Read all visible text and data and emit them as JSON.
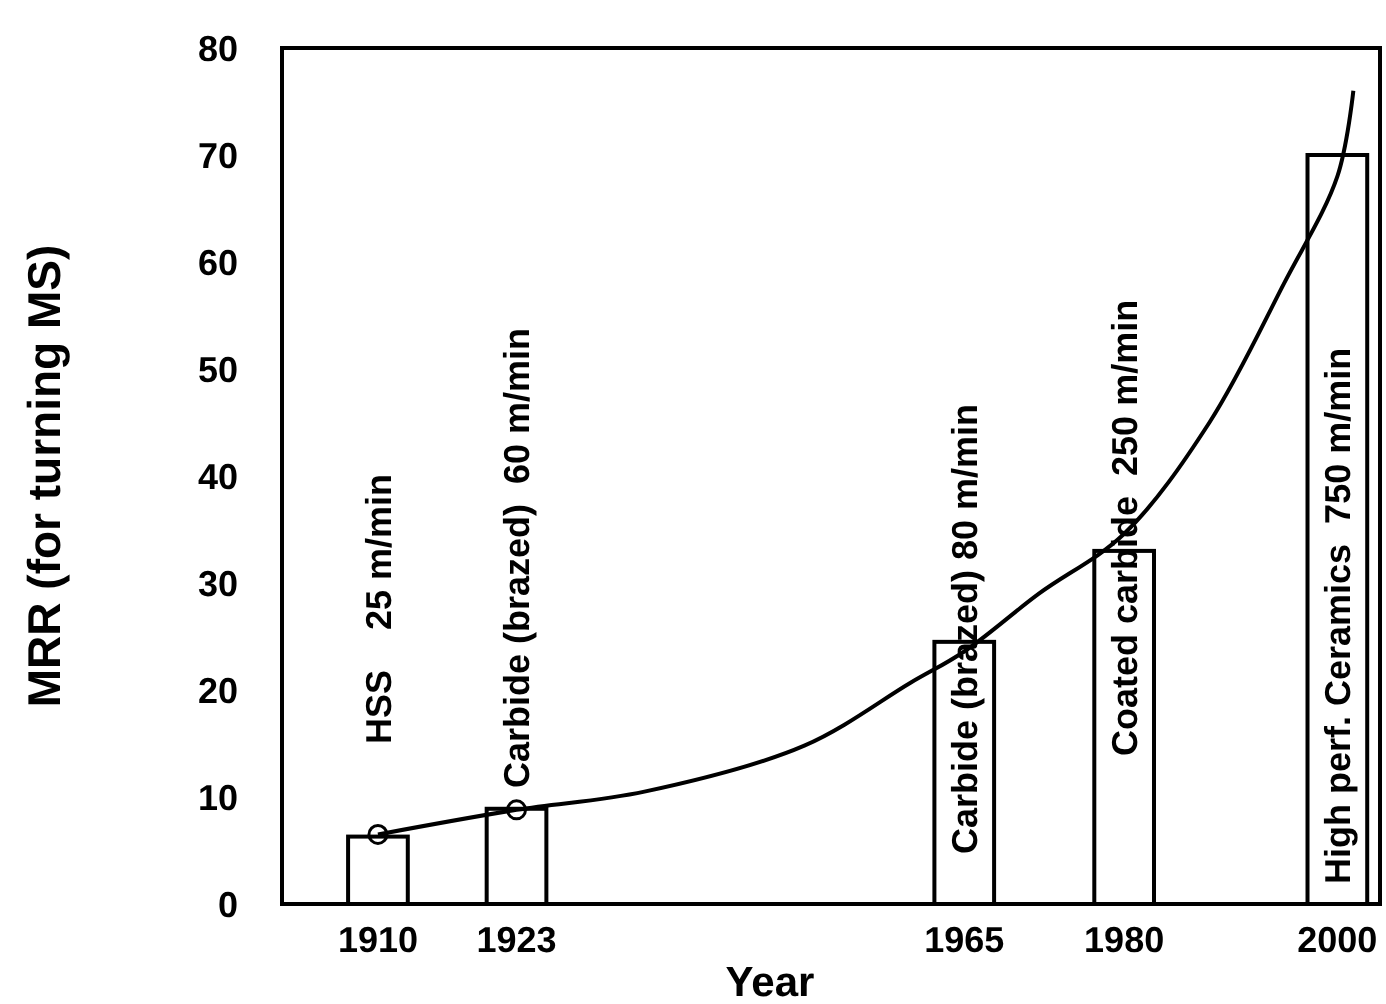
{
  "chart_data": {
    "type": "bar",
    "xlabel": "Year",
    "ylabel": "MRR (for turning MS)",
    "x": [
      1910,
      1923,
      1965,
      1980,
      2000
    ],
    "xlim": [
      1901,
      2004
    ],
    "xticks": [
      1910,
      1923,
      1965,
      1980,
      2000
    ],
    "ylim": [
      0,
      80
    ],
    "yticks": [
      0,
      10,
      20,
      30,
      40,
      50,
      60,
      70,
      80
    ],
    "grid": false,
    "series": [
      {
        "color": "#ffffff",
        "values": [
          6.3,
          8.9,
          24.5,
          33,
          70
        ]
      },
      {
        "type": "line",
        "color": "#000000",
        "marker": "none",
        "x": [
          1910,
          1923,
          1935,
          1950,
          1960,
          1965,
          1972,
          1980,
          1988,
          1995,
          2000,
          2001.5
        ],
        "values": [
          6.5,
          8.8,
          10.5,
          14.8,
          20.7,
          23.6,
          29,
          34.6,
          45,
          58,
          68,
          76
        ]
      },
      {
        "type": "scatter",
        "color": "#000000",
        "marker": "circle",
        "x": [
          1910,
          1923
        ],
        "values": [
          6.5,
          8.8
        ]
      }
    ],
    "annotations": [
      "HSS    25 m/min",
      "Carbide (brazed)  60 m/min",
      "Carbide (brazed) 80 m/min",
      "Coated carbide  250 m/min",
      "High perf. Ceramics  750 m/min"
    ]
  }
}
